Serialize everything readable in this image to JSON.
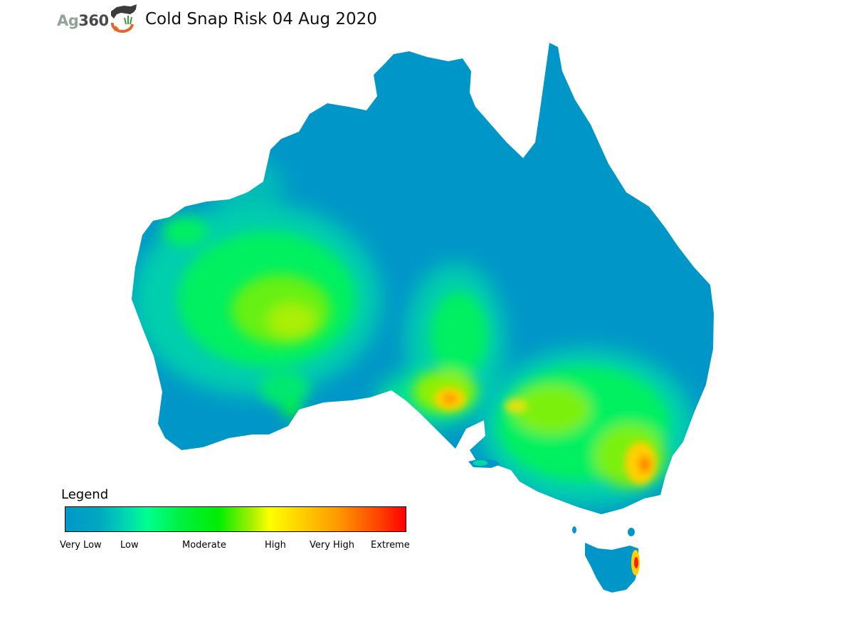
{
  "logo": {
    "text_ag": "Ag",
    "text_360": "360",
    "graphic_icon": "cow-and-wheat-logo-icon"
  },
  "title": "Cold Snap Risk 04 Aug 2020",
  "map": {
    "region": "Australia",
    "risk_colors": {
      "very_low": "#0097c8",
      "low": "#00ff90",
      "moderate": "#00ee00",
      "high": "#ffff00",
      "very_high": "#ff9900",
      "extreme": "#ff0000"
    }
  },
  "legend": {
    "title": "Legend",
    "labels": [
      "Very Low",
      "Low",
      "Moderate",
      "High",
      "Very High",
      "Extreme"
    ]
  }
}
